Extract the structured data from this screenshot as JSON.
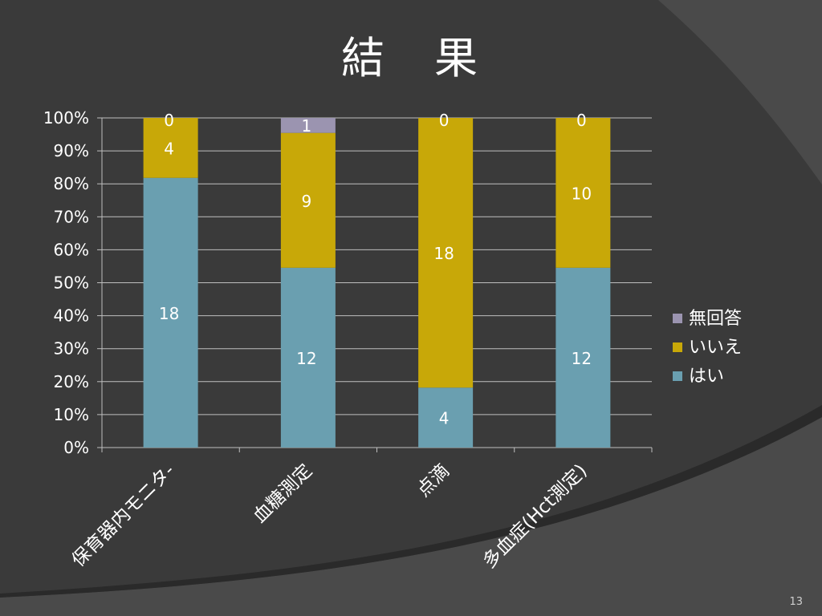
{
  "slide": {
    "title": "結　果",
    "page_number": "13"
  },
  "colors": {
    "background": "#3a3a3a",
    "swoosh": "#4a4a4a",
    "swoosh_edge": "#2a2a2a",
    "axis": "#bfbfbf",
    "text": "#ffffff"
  },
  "chart_data": {
    "type": "bar",
    "stacked": "percent",
    "categories": [
      "保育器内モニタ-",
      "血糖測定",
      "点滴",
      "多血症(Hct測定)"
    ],
    "series": [
      {
        "name": "はい",
        "color": "#6a9fb0",
        "values": [
          18,
          12,
          4,
          12
        ]
      },
      {
        "name": "いいえ",
        "color": "#c8a808",
        "values": [
          4,
          9,
          18,
          10
        ]
      },
      {
        "name": "無回答",
        "color": "#9b94b0",
        "values": [
          0,
          1,
          0,
          0
        ]
      }
    ],
    "ylim": [
      0,
      100
    ],
    "yticks": [
      "0%",
      "10%",
      "20%",
      "30%",
      "40%",
      "50%",
      "60%",
      "70%",
      "80%",
      "90%",
      "100%"
    ],
    "grid": true,
    "legend_position": "right",
    "legend_order": [
      "無回答",
      "いいえ",
      "はい"
    ]
  }
}
